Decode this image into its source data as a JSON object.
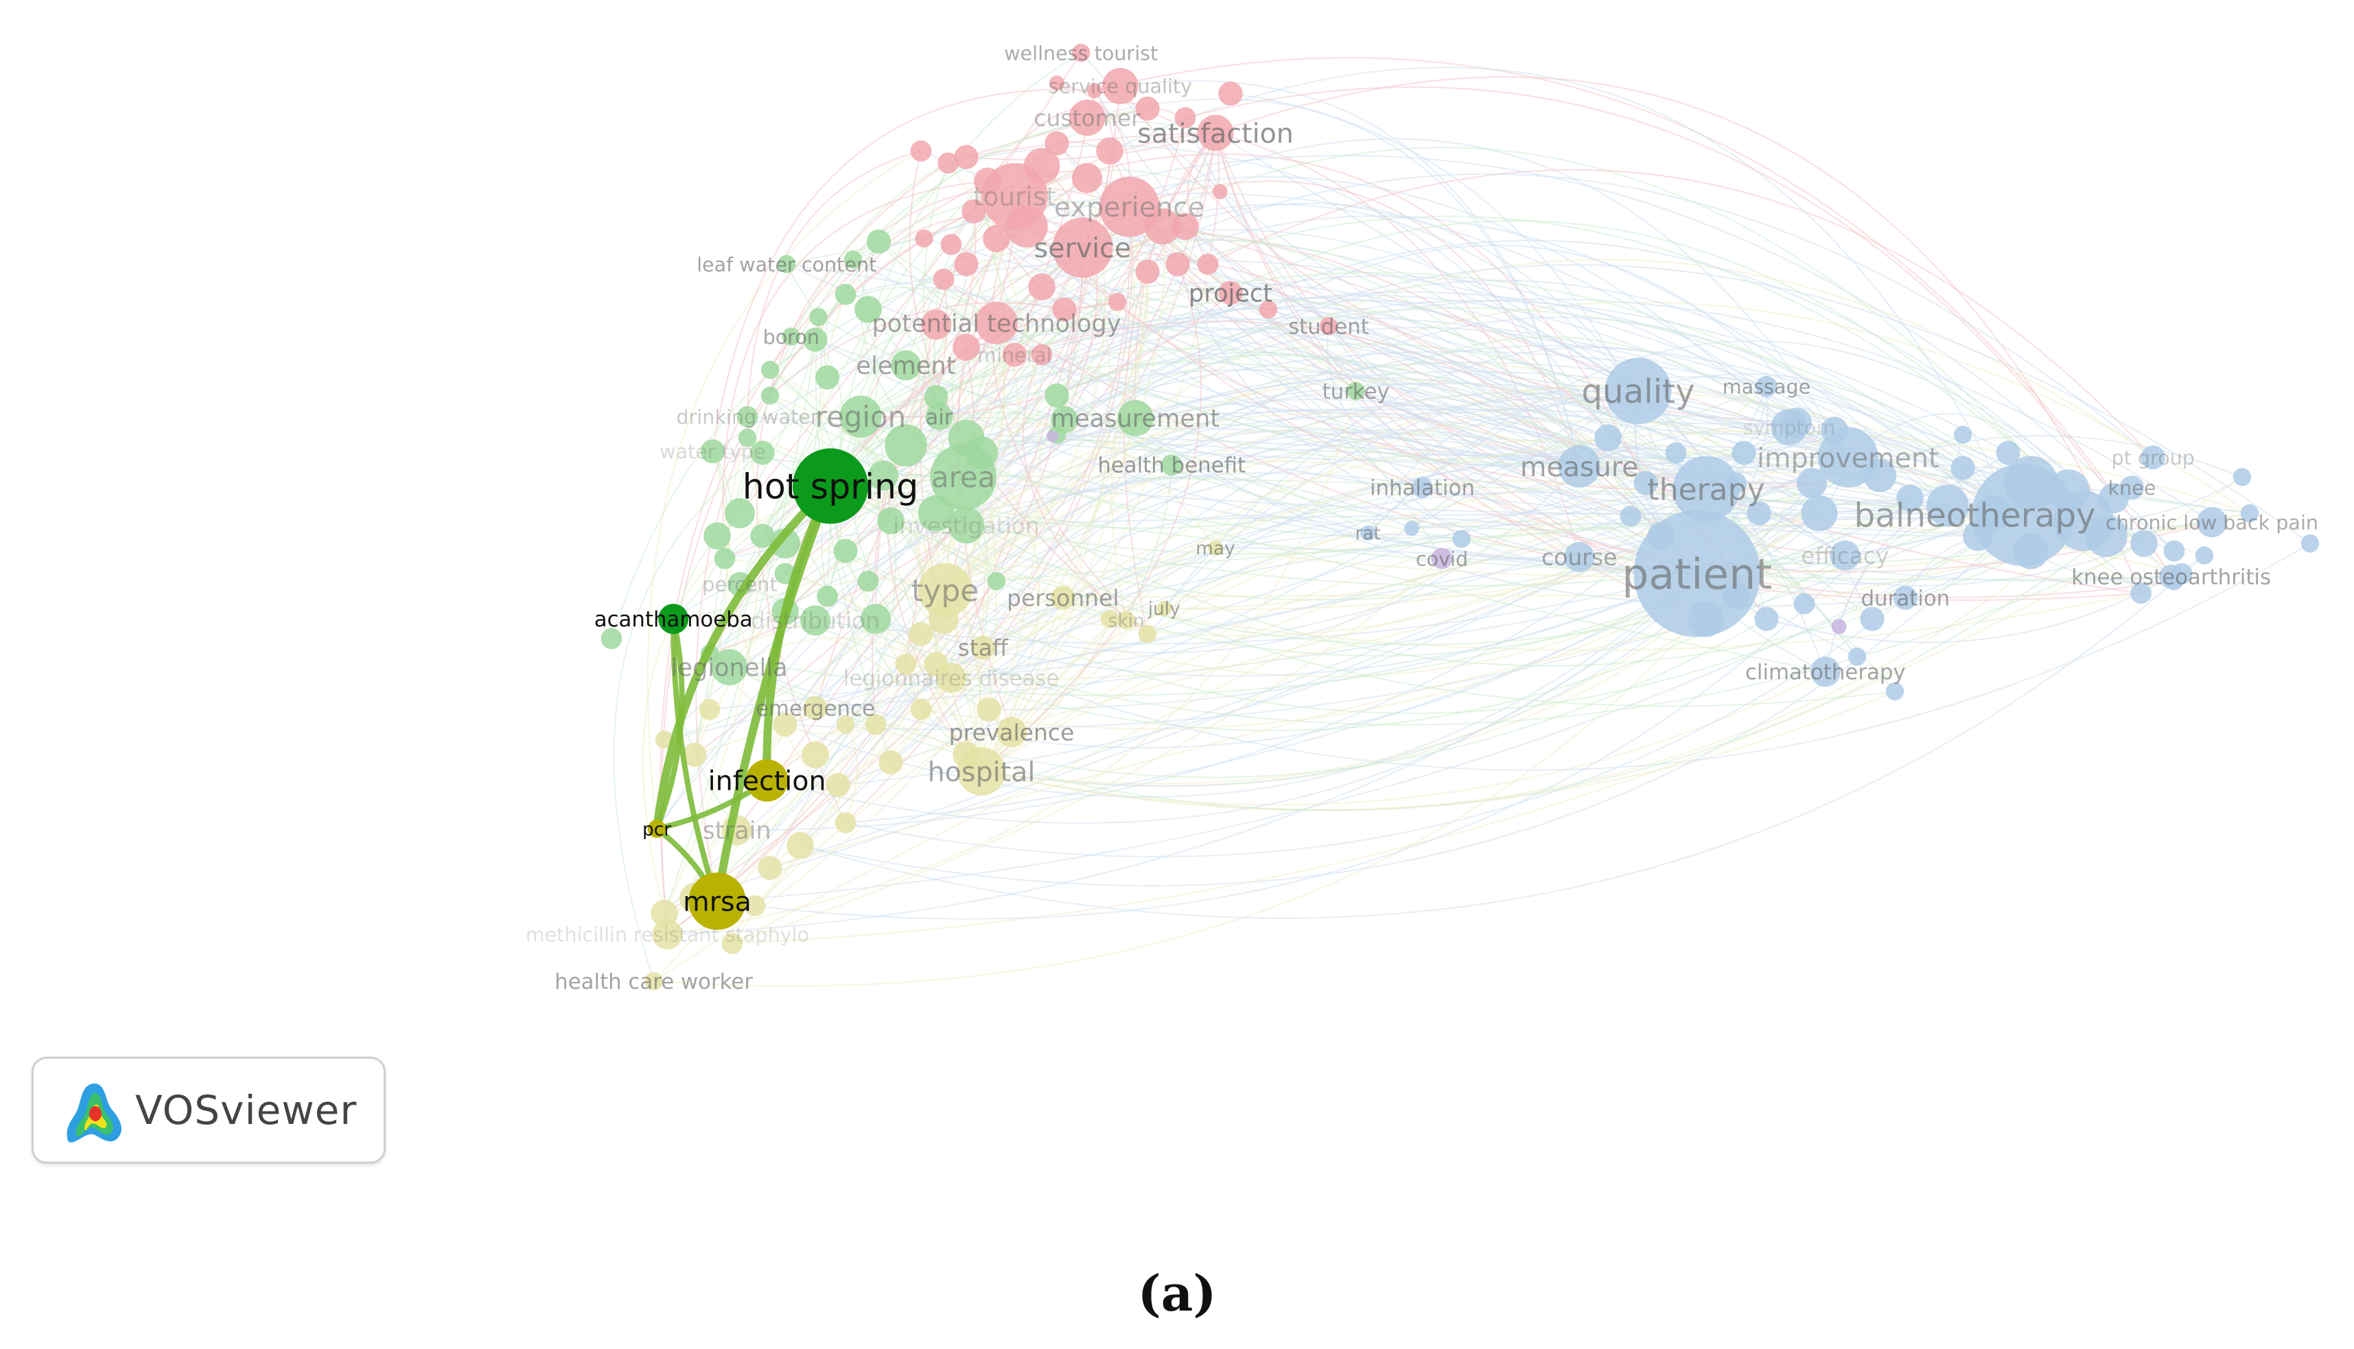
{
  "caption": "(a)",
  "logo": {
    "text": "VOSviewer",
    "icon": "vosviewer-logo-icon"
  },
  "clusters": {
    "red": {
      "node": "#f1a7ae",
      "edge": "#f4c4c9"
    },
    "green": {
      "node": "#9fd89f",
      "edge": "#cdeccd"
    },
    "blue": {
      "node": "#aecbe6",
      "edge": "#cfe0f0"
    },
    "yellow": {
      "node": "#e4e2a4",
      "edge": "#eeedc9"
    },
    "purple": {
      "node": "#c8b4e0",
      "edge": "#e0d6ef"
    },
    "hl_green": "#0c9a1c",
    "hl_yellow": "#b9b200",
    "hl_edge": "#7dbb3a"
  },
  "terms": [
    {
      "id": "wellness_tourist",
      "label": "wellness tourist",
      "c": "red"
    },
    {
      "id": "service_quality",
      "label": "service quality",
      "c": "red"
    },
    {
      "id": "customer",
      "label": "customer",
      "c": "red"
    },
    {
      "id": "satisfaction",
      "label": "satisfaction",
      "c": "red"
    },
    {
      "id": "tourist",
      "label": "tourist",
      "c": "red"
    },
    {
      "id": "experience",
      "label": "experience",
      "c": "red"
    },
    {
      "id": "service",
      "label": "service",
      "c": "red"
    },
    {
      "id": "project",
      "label": "project",
      "c": "red"
    },
    {
      "id": "student",
      "label": "student",
      "c": "red"
    },
    {
      "id": "potential_technology",
      "label": "potential technology",
      "c": "red"
    },
    {
      "id": "mineral",
      "label": "mineral",
      "c": "red"
    },
    {
      "id": "leaf_water_content",
      "label": "leaf water content",
      "c": "green"
    },
    {
      "id": "boron",
      "label": "boron",
      "c": "green"
    },
    {
      "id": "element",
      "label": "element",
      "c": "green"
    },
    {
      "id": "drinking_water",
      "label": "drinking water",
      "c": "green"
    },
    {
      "id": "water_type",
      "label": "water type",
      "c": "green"
    },
    {
      "id": "region",
      "label": "region",
      "c": "green"
    },
    {
      "id": "air",
      "label": "air",
      "c": "green"
    },
    {
      "id": "measurement",
      "label": "measurement",
      "c": "green"
    },
    {
      "id": "hot_spring",
      "label": "hot spring",
      "c": "green",
      "hl": true
    },
    {
      "id": "area",
      "label": "area",
      "c": "green"
    },
    {
      "id": "investigation",
      "label": "investigation",
      "c": "green"
    },
    {
      "id": "health_benefit",
      "label": "health benefit",
      "c": "green"
    },
    {
      "id": "turkey",
      "label": "turkey",
      "c": "green"
    },
    {
      "id": "percent",
      "label": "percent",
      "c": "green"
    },
    {
      "id": "acanthamoeba",
      "label": "acanthamoeba",
      "c": "green",
      "hl": true
    },
    {
      "id": "distribution",
      "label": "distribution",
      "c": "green"
    },
    {
      "id": "legionella",
      "label": "legionella",
      "c": "green"
    },
    {
      "id": "type",
      "label": "type",
      "c": "yellow"
    },
    {
      "id": "personnel",
      "label": "personnel",
      "c": "yellow"
    },
    {
      "id": "july",
      "label": "july",
      "c": "yellow"
    },
    {
      "id": "skin",
      "label": "skin",
      "c": "yellow"
    },
    {
      "id": "staff",
      "label": "staff",
      "c": "yellow"
    },
    {
      "id": "legionnaires_disease",
      "label": "legionnaires disease",
      "c": "yellow"
    },
    {
      "id": "emergence",
      "label": "emergence",
      "c": "yellow"
    },
    {
      "id": "prevalence",
      "label": "prevalence",
      "c": "yellow"
    },
    {
      "id": "hospital",
      "label": "hospital",
      "c": "yellow"
    },
    {
      "id": "infection",
      "label": "infection",
      "c": "yellow",
      "hl": true
    },
    {
      "id": "pcr",
      "label": "pcr",
      "c": "yellow",
      "hl": true
    },
    {
      "id": "strain",
      "label": "strain",
      "c": "yellow"
    },
    {
      "id": "mrsa",
      "label": "mrsa",
      "c": "yellow",
      "hl": true
    },
    {
      "id": "methicillin",
      "label": "methicillin resistant staphylo",
      "c": "yellow"
    },
    {
      "id": "health_care_worker",
      "label": "health care worker",
      "c": "yellow"
    },
    {
      "id": "may",
      "label": "may",
      "c": "yellow"
    },
    {
      "id": "quality",
      "label": "quality",
      "c": "blue"
    },
    {
      "id": "massage",
      "label": "massage",
      "c": "blue"
    },
    {
      "id": "symptom",
      "label": "symptom",
      "c": "blue"
    },
    {
      "id": "improvement",
      "label": "improvement",
      "c": "blue"
    },
    {
      "id": "measure",
      "label": "measure",
      "c": "blue"
    },
    {
      "id": "therapy",
      "label": "therapy",
      "c": "blue"
    },
    {
      "id": "balneotherapy",
      "label": "balneotherapy",
      "c": "blue"
    },
    {
      "id": "pt_group",
      "label": "pt group",
      "c": "blue"
    },
    {
      "id": "knee",
      "label": "knee",
      "c": "blue"
    },
    {
      "id": "chronic_low_back_pain",
      "label": "chronic low back pain",
      "c": "blue"
    },
    {
      "id": "inhalation",
      "label": "inhalation",
      "c": "blue"
    },
    {
      "id": "rat",
      "label": "rat",
      "c": "blue"
    },
    {
      "id": "covid",
      "label": "covid",
      "c": "purple"
    },
    {
      "id": "course",
      "label": "course",
      "c": "blue"
    },
    {
      "id": "patient",
      "label": "patient",
      "c": "blue"
    },
    {
      "id": "efficacy",
      "label": "efficacy",
      "c": "blue"
    },
    {
      "id": "knee_osteoarthritis",
      "label": "knee osteoarthritis",
      "c": "blue"
    },
    {
      "id": "duration",
      "label": "duration",
      "c": "blue"
    },
    {
      "id": "climatotherapy",
      "label": "climatotherapy",
      "c": "blue"
    }
  ],
  "highlight_links": [
    [
      "hot_spring",
      "infection"
    ],
    [
      "hot_spring",
      "pcr"
    ],
    [
      "hot_spring",
      "mrsa"
    ],
    [
      "acanthamoeba",
      "pcr"
    ],
    [
      "pcr",
      "infection"
    ],
    [
      "pcr",
      "mrsa"
    ],
    [
      "acanthamoeba",
      "mrsa"
    ]
  ]
}
